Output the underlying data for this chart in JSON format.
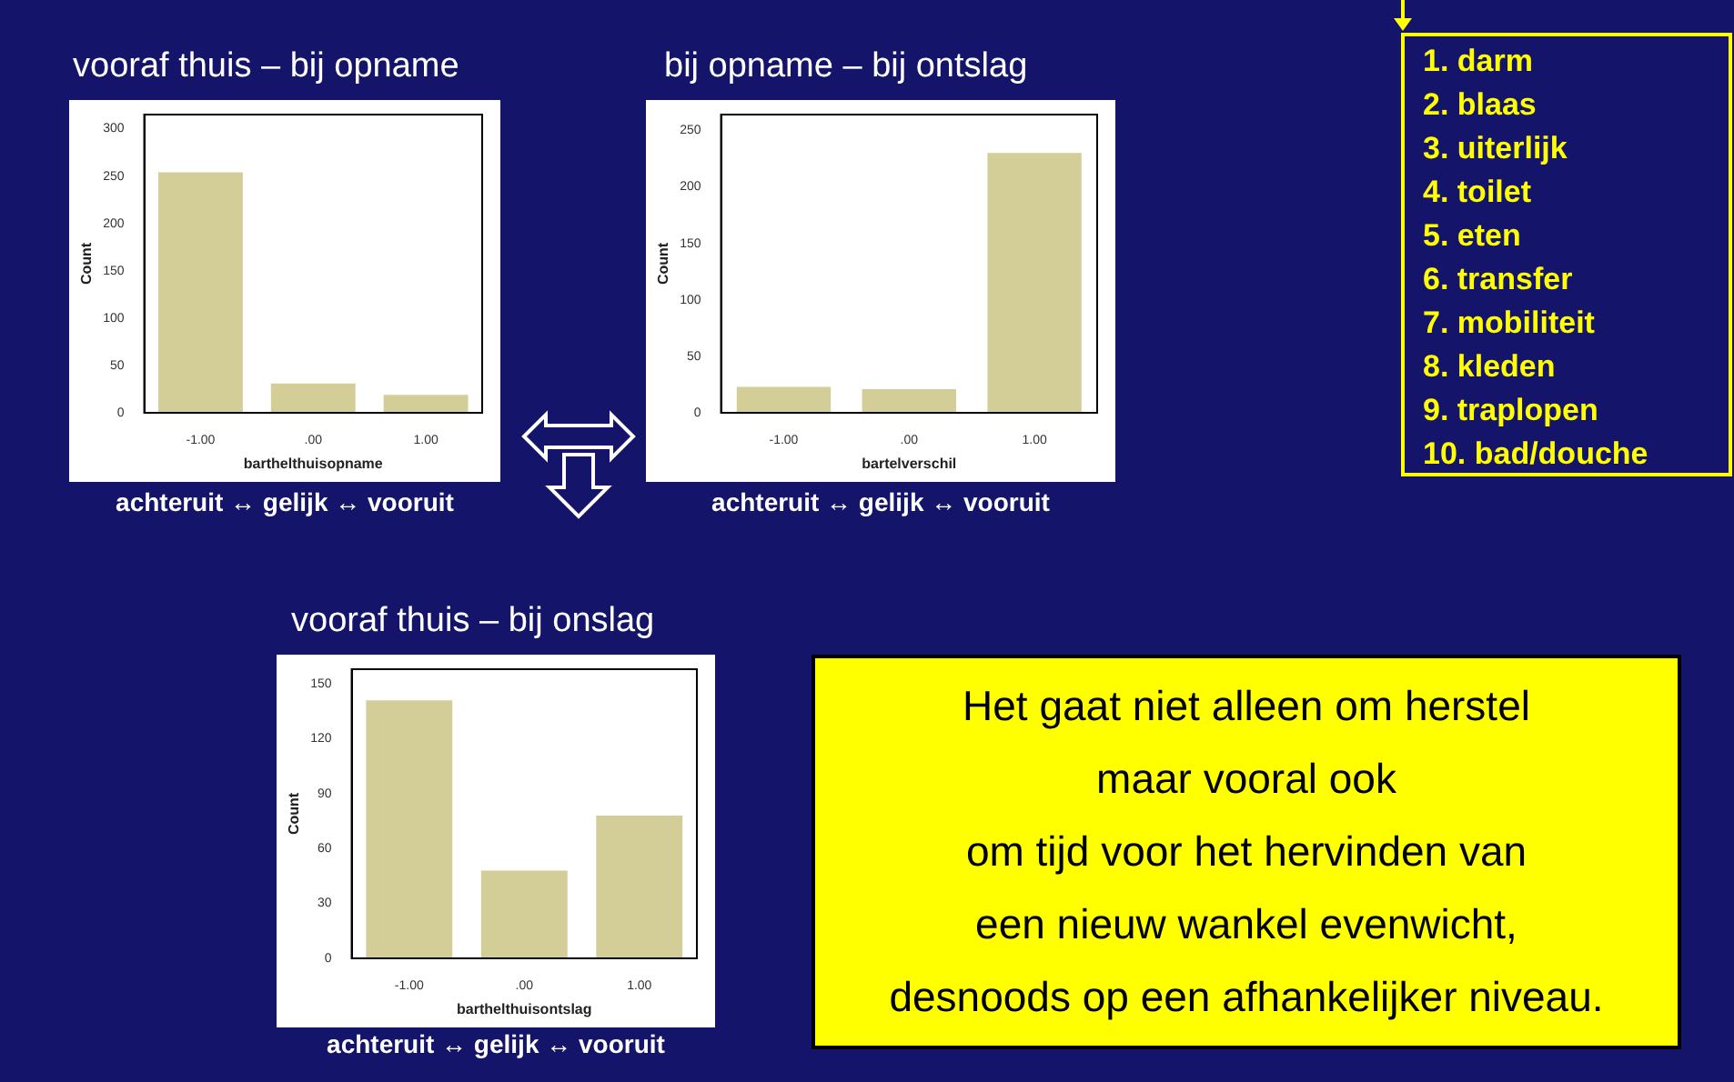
{
  "chart_data": [
    {
      "type": "bar",
      "title": "vooraf thuis – bij opname",
      "xlabel": "barthelthuisopname",
      "ylabel": "Count",
      "categories": [
        "-1.00",
        ".00",
        "1.00"
      ],
      "values": [
        254,
        31,
        19
      ],
      "color": "#d3cd98",
      "ylim": [
        0,
        315
      ],
      "yticks": [
        0,
        50,
        100,
        150,
        200,
        250,
        300
      ],
      "annotations": [
        "achteruit ↔ gelijk ↔ vooruit"
      ]
    },
    {
      "type": "bar",
      "title": "bij opname – bij ontslag",
      "xlabel": "bartelverschil",
      "ylabel": "Count",
      "categories": [
        "-1.00",
        ".00",
        "1.00"
      ],
      "values": [
        23,
        21,
        230
      ],
      "color": "#d3cd98",
      "ylim": [
        0,
        264
      ],
      "yticks": [
        0,
        50,
        100,
        150,
        200,
        250
      ],
      "annotations": [
        "achteruit ↔ gelijk ↔ vooruit"
      ]
    },
    {
      "type": "other",
      "annotations": [
        "1. darm",
        "2. blaas",
        "3. uiterlijk",
        "4. toilet",
        "5. eten",
        "6. transfer",
        "7. mobiliteit",
        "8. kleden",
        "9. traplopen",
        "10. bad/douche"
      ]
    },
    {
      "type": "bar",
      "title": "vooraf thuis – bij onslag",
      "xlabel": "barthelthuisontslag",
      "ylabel": "Count",
      "categories": [
        "-1.00",
        ".00",
        "1.00"
      ],
      "values": [
        141,
        48,
        78
      ],
      "color": "#d3cd98",
      "ylim": [
        0,
        158
      ],
      "yticks": [
        0,
        30,
        60,
        90,
        120,
        150
      ],
      "annotations": [
        "achteruit ↔ gelijk ↔ vooruit"
      ]
    },
    {
      "type": "other",
      "annotations": [
        "Het gaat niet alleen om herstel",
        "maar vooral ook",
        "om tijd voor het hervinden van",
        "een nieuw wankel evenwicht,",
        "desnoods op een afhankelijker niveau."
      ]
    }
  ]
}
